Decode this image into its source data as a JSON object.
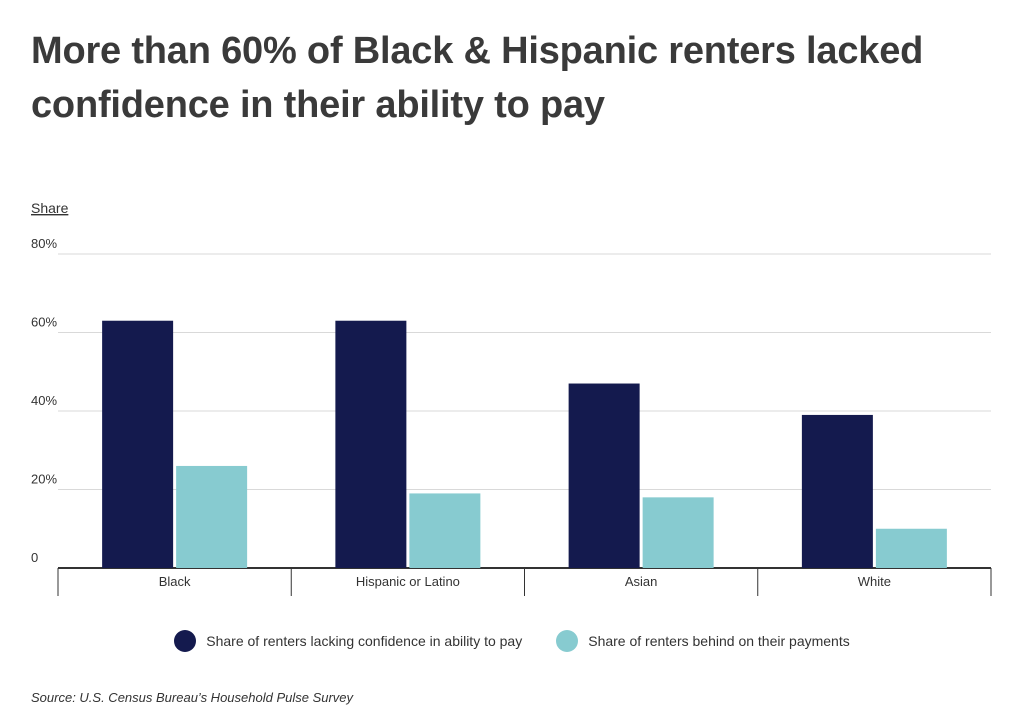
{
  "title": "More than 60% of Black & Hispanic renters lacked confidence in their ability to pay",
  "source": "Source:  U.S. Census Bureau’s Household Pulse Survey",
  "colors": {
    "series1": "#141a4e",
    "series2": "#87cbd0",
    "grid": "#d9d9d9",
    "axis": "#333333"
  },
  "chart_data": {
    "type": "bar",
    "ylabel": "Share",
    "ylim": [
      0,
      80
    ],
    "ytick_labels": [
      "0",
      "20%",
      "40%",
      "60%",
      "80%"
    ],
    "categories": [
      "Black",
      "Hispanic or Latino",
      "Asian",
      "White"
    ],
    "series": [
      {
        "name": "Share of renters lacking confidence in ability to pay",
        "values": [
          63,
          63,
          47,
          39
        ]
      },
      {
        "name": "Share of renters behind on their payments",
        "values": [
          26,
          19,
          18,
          10
        ]
      }
    ],
    "grid": true,
    "legend_position": "bottom"
  }
}
